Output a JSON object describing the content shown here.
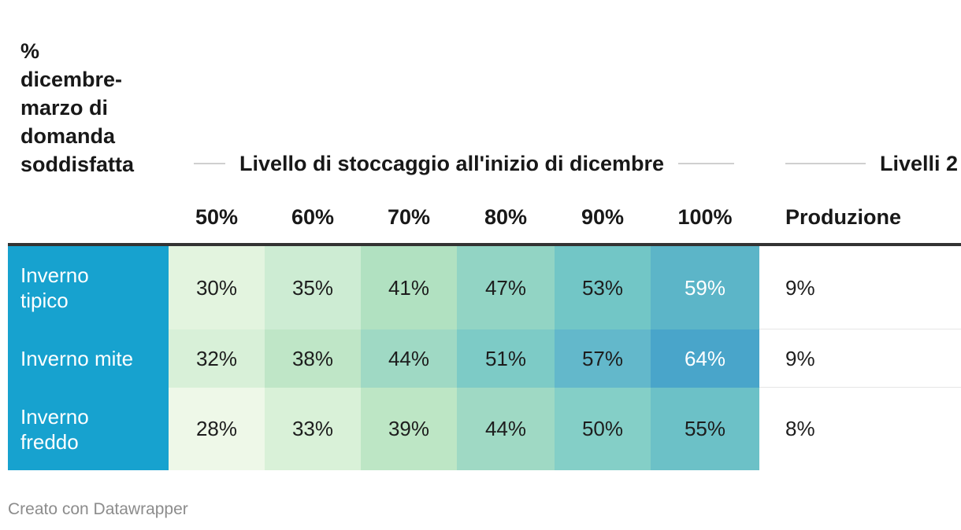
{
  "chart_data": {
    "type": "table",
    "corner_header": "%\ndicembre-\nmarzo di\ndomanda\nsoddisfatta",
    "column_groups": [
      {
        "label": "Livello di stoccaggio all'inizio di dicembre"
      },
      {
        "label": "Livelli 2"
      }
    ],
    "columns": [
      "50%",
      "60%",
      "70%",
      "80%",
      "90%",
      "100%",
      "Produzione"
    ],
    "rows": [
      {
        "label": "Inverno\ntipico",
        "values": [
          "30%",
          "35%",
          "41%",
          "47%",
          "53%",
          "59%",
          "9%"
        ]
      },
      {
        "label": "Inverno mite",
        "values": [
          "32%",
          "38%",
          "44%",
          "51%",
          "57%",
          "64%",
          "9%"
        ]
      },
      {
        "label": "Inverno\nfreddo",
        "values": [
          "28%",
          "33%",
          "39%",
          "44%",
          "50%",
          "55%",
          "8%"
        ]
      }
    ],
    "heatmap": {
      "min": 28,
      "max": 64,
      "colors": {
        "30%": "#e3f4df",
        "35%": "#cdecd3",
        "41%": "#b1e1c1",
        "47%": "#92d4c4",
        "53%": "#72c6c6",
        "59%": "#5cb5c8",
        "32%": "#d8f0d8",
        "38%": "#bfe6c7",
        "44%": "#9fd9c4",
        "51%": "#7dcbc6",
        "57%": "#63b8cb",
        "64%": "#49a5ca",
        "28%": "#eef8e8",
        "33%": "#d9f1d8",
        "39%": "#bde6c5",
        "50%": "#84cfc7",
        "55%": "#6cc1c7"
      }
    },
    "row_header_color": "#17a2cf"
  },
  "footer": "Creato con Datawrapper"
}
